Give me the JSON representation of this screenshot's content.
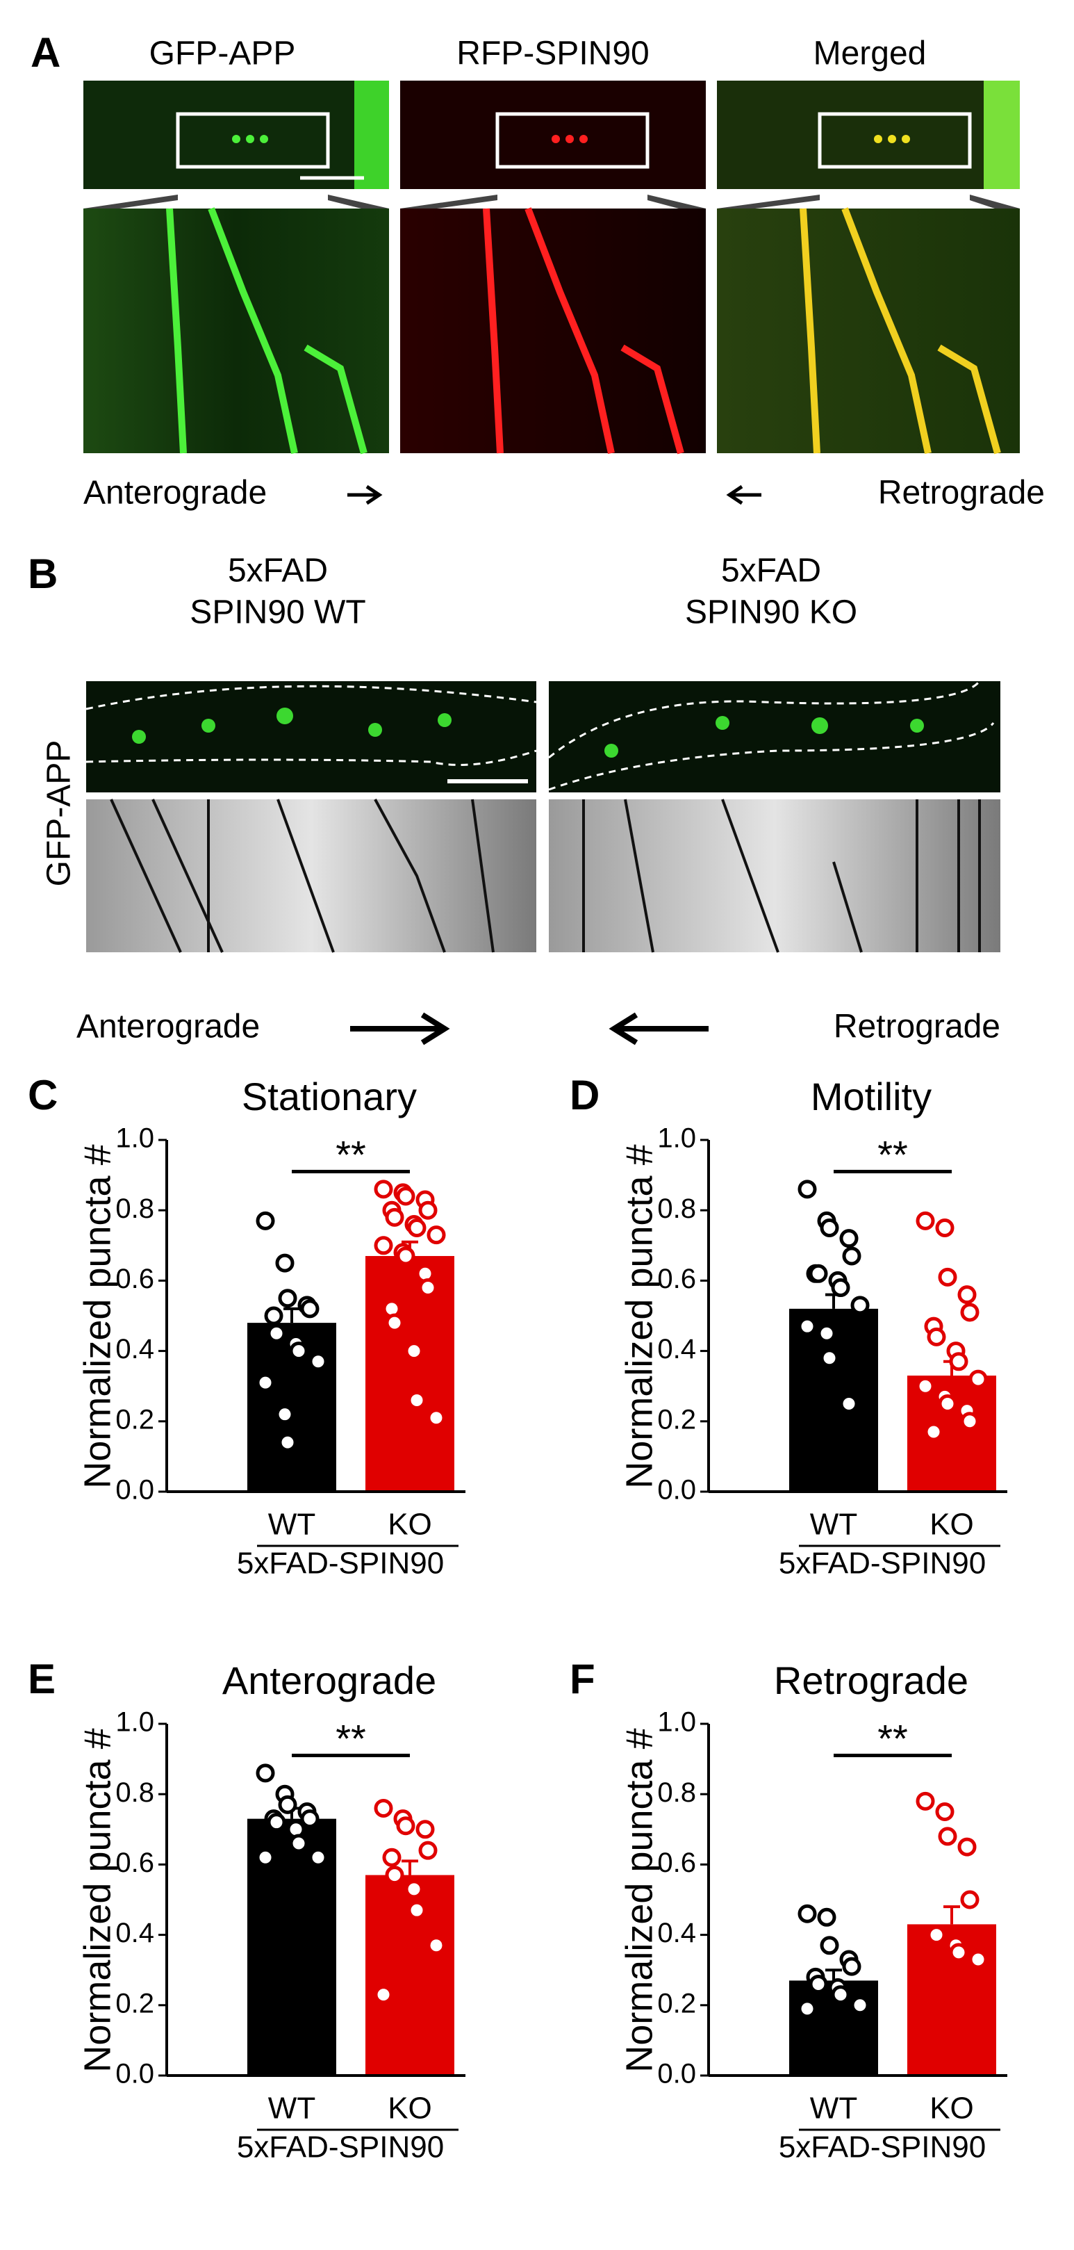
{
  "panel_a": {
    "label": "A",
    "columns": [
      "GFP-APP",
      "RFP-SPIN90",
      "Merged"
    ],
    "left_direction": "Anterograde",
    "right_direction": "Retrograde"
  },
  "panel_b": {
    "label": "B",
    "conditions": [
      [
        "5xFAD",
        "SPIN90 WT"
      ],
      [
        "5xFAD",
        "SPIN90 KO"
      ]
    ],
    "channel": "GFP-APP",
    "left_direction": "Anterograde",
    "right_direction": "Retrograde"
  },
  "chart_data": [
    {
      "type": "bar",
      "panel": "C",
      "title": "Stationary",
      "ylabel": "Normalized puncta #",
      "xlabel": "5xFAD-SPIN90",
      "categories": [
        "WT",
        "KO"
      ],
      "colors": [
        "#000000",
        "#e00000"
      ],
      "values": [
        0.48,
        0.67
      ],
      "errors": [
        0.04,
        0.04
      ],
      "points": [
        [
          0.77,
          0.65,
          0.55,
          0.53,
          0.52,
          0.5,
          0.45,
          0.42,
          0.4,
          0.37,
          0.31,
          0.22,
          0.14
        ],
        [
          0.86,
          0.85,
          0.84,
          0.83,
          0.8,
          0.8,
          0.78,
          0.76,
          0.75,
          0.73,
          0.7,
          0.68,
          0.67,
          0.62,
          0.58,
          0.52,
          0.48,
          0.4,
          0.26,
          0.21
        ]
      ],
      "significance": "**",
      "ylim": [
        0,
        1
      ],
      "yticks": [
        {
          "value": 0,
          "label": "0.0"
        },
        {
          "value": 0.2,
          "label": "0.2"
        },
        {
          "value": 0.4,
          "label": "0.4"
        },
        {
          "value": 0.6,
          "label": "0.6"
        },
        {
          "value": 0.8,
          "label": "0.8"
        },
        {
          "value": 1,
          "label": "1.0"
        }
      ]
    },
    {
      "type": "bar",
      "panel": "D",
      "title": "Motility",
      "ylabel": "Normalized puncta #",
      "xlabel": "5xFAD-SPIN90",
      "categories": [
        "WT",
        "KO"
      ],
      "colors": [
        "#000000",
        "#e00000"
      ],
      "values": [
        0.52,
        0.33
      ],
      "errors": [
        0.04,
        0.04
      ],
      "points": [
        [
          0.86,
          0.77,
          0.75,
          0.72,
          0.67,
          0.62,
          0.62,
          0.6,
          0.58,
          0.53,
          0.47,
          0.45,
          0.38,
          0.25
        ],
        [
          0.77,
          0.75,
          0.61,
          0.56,
          0.51,
          0.47,
          0.44,
          0.4,
          0.37,
          0.32,
          0.3,
          0.27,
          0.25,
          0.23,
          0.2,
          0.17
        ]
      ],
      "significance": "**",
      "ylim": [
        0,
        1
      ],
      "yticks": [
        {
          "value": 0,
          "label": "0.0"
        },
        {
          "value": 0.2,
          "label": "0.2"
        },
        {
          "value": 0.4,
          "label": "0.4"
        },
        {
          "value": 0.6,
          "label": "0.6"
        },
        {
          "value": 0.8,
          "label": "0.8"
        },
        {
          "value": 1,
          "label": "1.0"
        }
      ]
    },
    {
      "type": "bar",
      "panel": "E",
      "title": "Anterograde",
      "ylabel": "Normalized puncta #",
      "xlabel": "5xFAD-SPIN90",
      "categories": [
        "WT",
        "KO"
      ],
      "colors": [
        "#000000",
        "#e00000"
      ],
      "values": [
        0.73,
        0.57
      ],
      "errors": [
        0.03,
        0.04
      ],
      "points": [
        [
          0.86,
          0.8,
          0.77,
          0.75,
          0.73,
          0.73,
          0.72,
          0.7,
          0.66,
          0.62,
          0.62
        ],
        [
          0.76,
          0.73,
          0.71,
          0.7,
          0.64,
          0.62,
          0.57,
          0.53,
          0.47,
          0.37,
          0.23
        ]
      ],
      "significance": "**",
      "ylim": [
        0,
        1
      ],
      "yticks": [
        {
          "value": 0,
          "label": "0.0"
        },
        {
          "value": 0.2,
          "label": "0.2"
        },
        {
          "value": 0.4,
          "label": "0.4"
        },
        {
          "value": 0.6,
          "label": "0.6"
        },
        {
          "value": 0.8,
          "label": "0.8"
        },
        {
          "value": 1,
          "label": "1.0"
        }
      ]
    },
    {
      "type": "bar",
      "panel": "F",
      "title": "Retrograde",
      "ylabel": "Normalized puncta #",
      "xlabel": "5xFAD-SPIN90",
      "categories": [
        "WT",
        "KO"
      ],
      "colors": [
        "#000000",
        "#e00000"
      ],
      "values": [
        0.27,
        0.43
      ],
      "errors": [
        0.03,
        0.05
      ],
      "points": [
        [
          0.46,
          0.45,
          0.37,
          0.33,
          0.31,
          0.28,
          0.26,
          0.25,
          0.23,
          0.2,
          0.19
        ],
        [
          0.78,
          0.75,
          0.68,
          0.65,
          0.5,
          0.4,
          0.4,
          0.37,
          0.35,
          0.33
        ]
      ],
      "significance": "**",
      "ylim": [
        0,
        1
      ],
      "yticks": [
        {
          "value": 0,
          "label": "0.0"
        },
        {
          "value": 0.2,
          "label": "0.2"
        },
        {
          "value": 0.4,
          "label": "0.4"
        },
        {
          "value": 0.6,
          "label": "0.6"
        },
        {
          "value": 0.8,
          "label": "0.8"
        },
        {
          "value": 1,
          "label": "1.0"
        }
      ]
    }
  ]
}
